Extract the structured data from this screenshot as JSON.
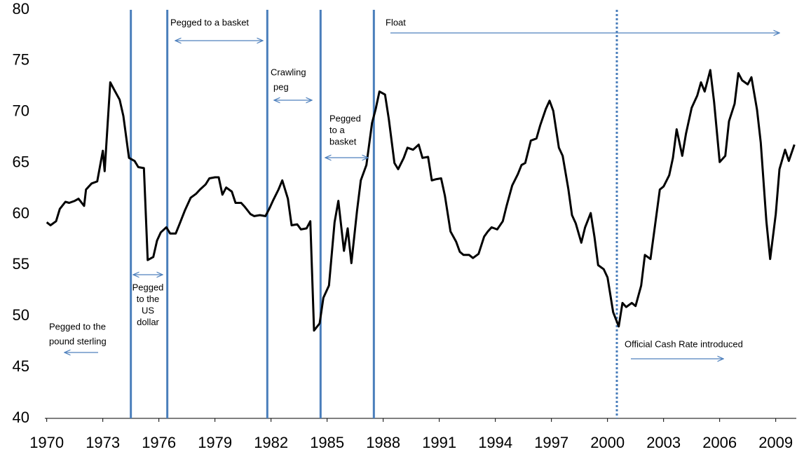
{
  "chart_data": {
    "type": "line",
    "color": "#000000",
    "x": [
      1970.0,
      1970.2,
      1970.5,
      1970.7,
      1971.0,
      1971.2,
      1971.5,
      1971.7,
      1972.0,
      1972.1,
      1972.4,
      1972.7,
      1973.0,
      1973.1,
      1973.4,
      1973.6,
      1973.9,
      1974.1,
      1974.4,
      1974.7,
      1974.9,
      1975.2,
      1975.4,
      1975.7,
      1975.9,
      1976.1,
      1976.4,
      1976.6,
      1976.9,
      1977.1,
      1977.4,
      1977.7,
      1978.0,
      1978.2,
      1978.5,
      1978.7,
      1979.0,
      1979.2,
      1979.4,
      1979.6,
      1979.9,
      1980.1,
      1980.4,
      1980.6,
      1980.9,
      1981.1,
      1981.4,
      1981.7,
      1981.9,
      1982.1,
      1982.4,
      1982.6,
      1982.9,
      1983.1,
      1983.4,
      1983.6,
      1983.9,
      1984.1,
      1984.3,
      1984.6,
      1984.8,
      1985.1,
      1985.4,
      1985.6,
      1985.9,
      1986.1,
      1986.3,
      1986.6,
      1986.8,
      1987.1,
      1987.4,
      1987.6,
      1987.8,
      1988.1,
      1988.3,
      1988.6,
      1988.8,
      1989.1,
      1989.3,
      1989.6,
      1989.9,
      1990.1,
      1990.4,
      1990.6,
      1990.8,
      1991.1,
      1991.3,
      1991.6,
      1991.9,
      1992.1,
      1992.3,
      1992.6,
      1992.8,
      1993.1,
      1993.4,
      1993.6,
      1993.8,
      1994.1,
      1994.4,
      1994.6,
      1994.9,
      1995.2,
      1995.4,
      1995.6,
      1995.9,
      1996.2,
      1996.4,
      1996.7,
      1996.9,
      1997.1,
      1997.4,
      1997.6,
      1997.9,
      1998.1,
      1998.3,
      1998.6,
      1998.8,
      1999.1,
      1999.3,
      1999.5,
      1999.8,
      2000.0,
      2000.3,
      2000.6,
      2000.8,
      2001.0,
      2001.3,
      2001.5,
      2001.8,
      2002.0,
      2002.3,
      2002.5,
      2002.8,
      2003.0,
      2003.3,
      2003.5,
      2003.7,
      2004.0,
      2004.2,
      2004.5,
      2004.8,
      2005.0,
      2005.2,
      2005.5,
      2005.7,
      2006.0,
      2006.3,
      2006.5,
      2006.8,
      2007.0,
      2007.2,
      2007.5,
      2007.7,
      2008.0,
      2008.2,
      2008.5,
      2008.7,
      2009.0,
      2009.2,
      2009.5,
      2009.7,
      2010.0
    ],
    "values": [
      59.2,
      58.9,
      59.3,
      60.5,
      61.2,
      61.1,
      61.3,
      61.5,
      60.8,
      62.4,
      63.0,
      63.2,
      66.2,
      64.2,
      72.9,
      72.2,
      71.2,
      69.6,
      65.5,
      65.2,
      64.6,
      64.5,
      55.5,
      55.8,
      57.4,
      58.2,
      58.7,
      58.1,
      58.1,
      59.0,
      60.4,
      61.6,
      62.0,
      62.4,
      62.9,
      63.5,
      63.6,
      63.6,
      61.9,
      62.6,
      62.2,
      61.1,
      61.1,
      60.7,
      60.0,
      59.8,
      59.9,
      59.8,
      60.5,
      61.3,
      62.4,
      63.3,
      61.5,
      58.9,
      59.0,
      58.5,
      58.6,
      59.3,
      48.6,
      49.3,
      51.8,
      53.0,
      59.2,
      61.3,
      56.4,
      58.6,
      55.2,
      60.3,
      63.3,
      64.8,
      68.9,
      70.3,
      72.0,
      71.7,
      69.3,
      65.0,
      64.4,
      65.5,
      66.5,
      66.3,
      66.8,
      65.5,
      65.6,
      63.3,
      63.4,
      63.5,
      61.8,
      58.3,
      57.3,
      56.3,
      56.0,
      56.0,
      55.7,
      56.1,
      57.8,
      58.3,
      58.7,
      58.5,
      59.3,
      60.8,
      62.8,
      63.9,
      64.8,
      65.0,
      67.2,
      67.4,
      68.7,
      70.3,
      71.1,
      70.1,
      66.5,
      65.7,
      62.5,
      59.9,
      59.1,
      57.2,
      58.7,
      60.1,
      57.8,
      55.0,
      54.6,
      53.8,
      50.4,
      49.0,
      51.3,
      50.9,
      51.3,
      51.0,
      53.0,
      56.0,
      55.6,
      58.3,
      62.4,
      62.7,
      63.8,
      65.5,
      68.3,
      65.7,
      67.9,
      70.4,
      71.6,
      72.9,
      72.0,
      74.1,
      71.0,
      65.1,
      65.7,
      69.1,
      70.8,
      73.8,
      73.1,
      72.7,
      73.4,
      70.2,
      67.0,
      59.3,
      55.6,
      60.0,
      64.4,
      66.3,
      65.2,
      66.8
    ],
    "xlim": [
      1969.9,
      2010.1
    ],
    "xticks": [
      1970,
      1973,
      1976,
      1979,
      1982,
      1985,
      1988,
      1991,
      1994,
      1997,
      2000,
      2003,
      2006,
      2009
    ],
    "ylim": [
      40,
      80
    ],
    "yticks": [
      40,
      45,
      50,
      55,
      60,
      65,
      70,
      75,
      80
    ],
    "grid": false,
    "vline_color": "#4a7ebb",
    "arrow_color": "#4f81bd",
    "vlines": [
      {
        "x": 1974.5,
        "style": "solid"
      },
      {
        "x": 1976.45,
        "style": "solid"
      },
      {
        "x": 1981.8,
        "style": "solid"
      },
      {
        "x": 1984.65,
        "style": "solid"
      },
      {
        "x": 1987.5,
        "style": "solid"
      },
      {
        "x": 2000.5,
        "style": "dotted"
      }
    ],
    "annotations": [
      {
        "lines": [
          "Pegged to the",
          "pound sterling"
        ]
      },
      {
        "lines": [
          "Pegged",
          "to the",
          "US",
          "dollar"
        ]
      },
      {
        "lines": [
          "Pegged to a basket"
        ]
      },
      {
        "lines": [
          "Crawling",
          "peg"
        ]
      },
      {
        "lines": [
          "Pegged",
          "to a",
          "basket"
        ]
      },
      {
        "lines": [
          "Float"
        ]
      },
      {
        "lines": [
          "Official Cash Rate introduced"
        ]
      }
    ]
  }
}
